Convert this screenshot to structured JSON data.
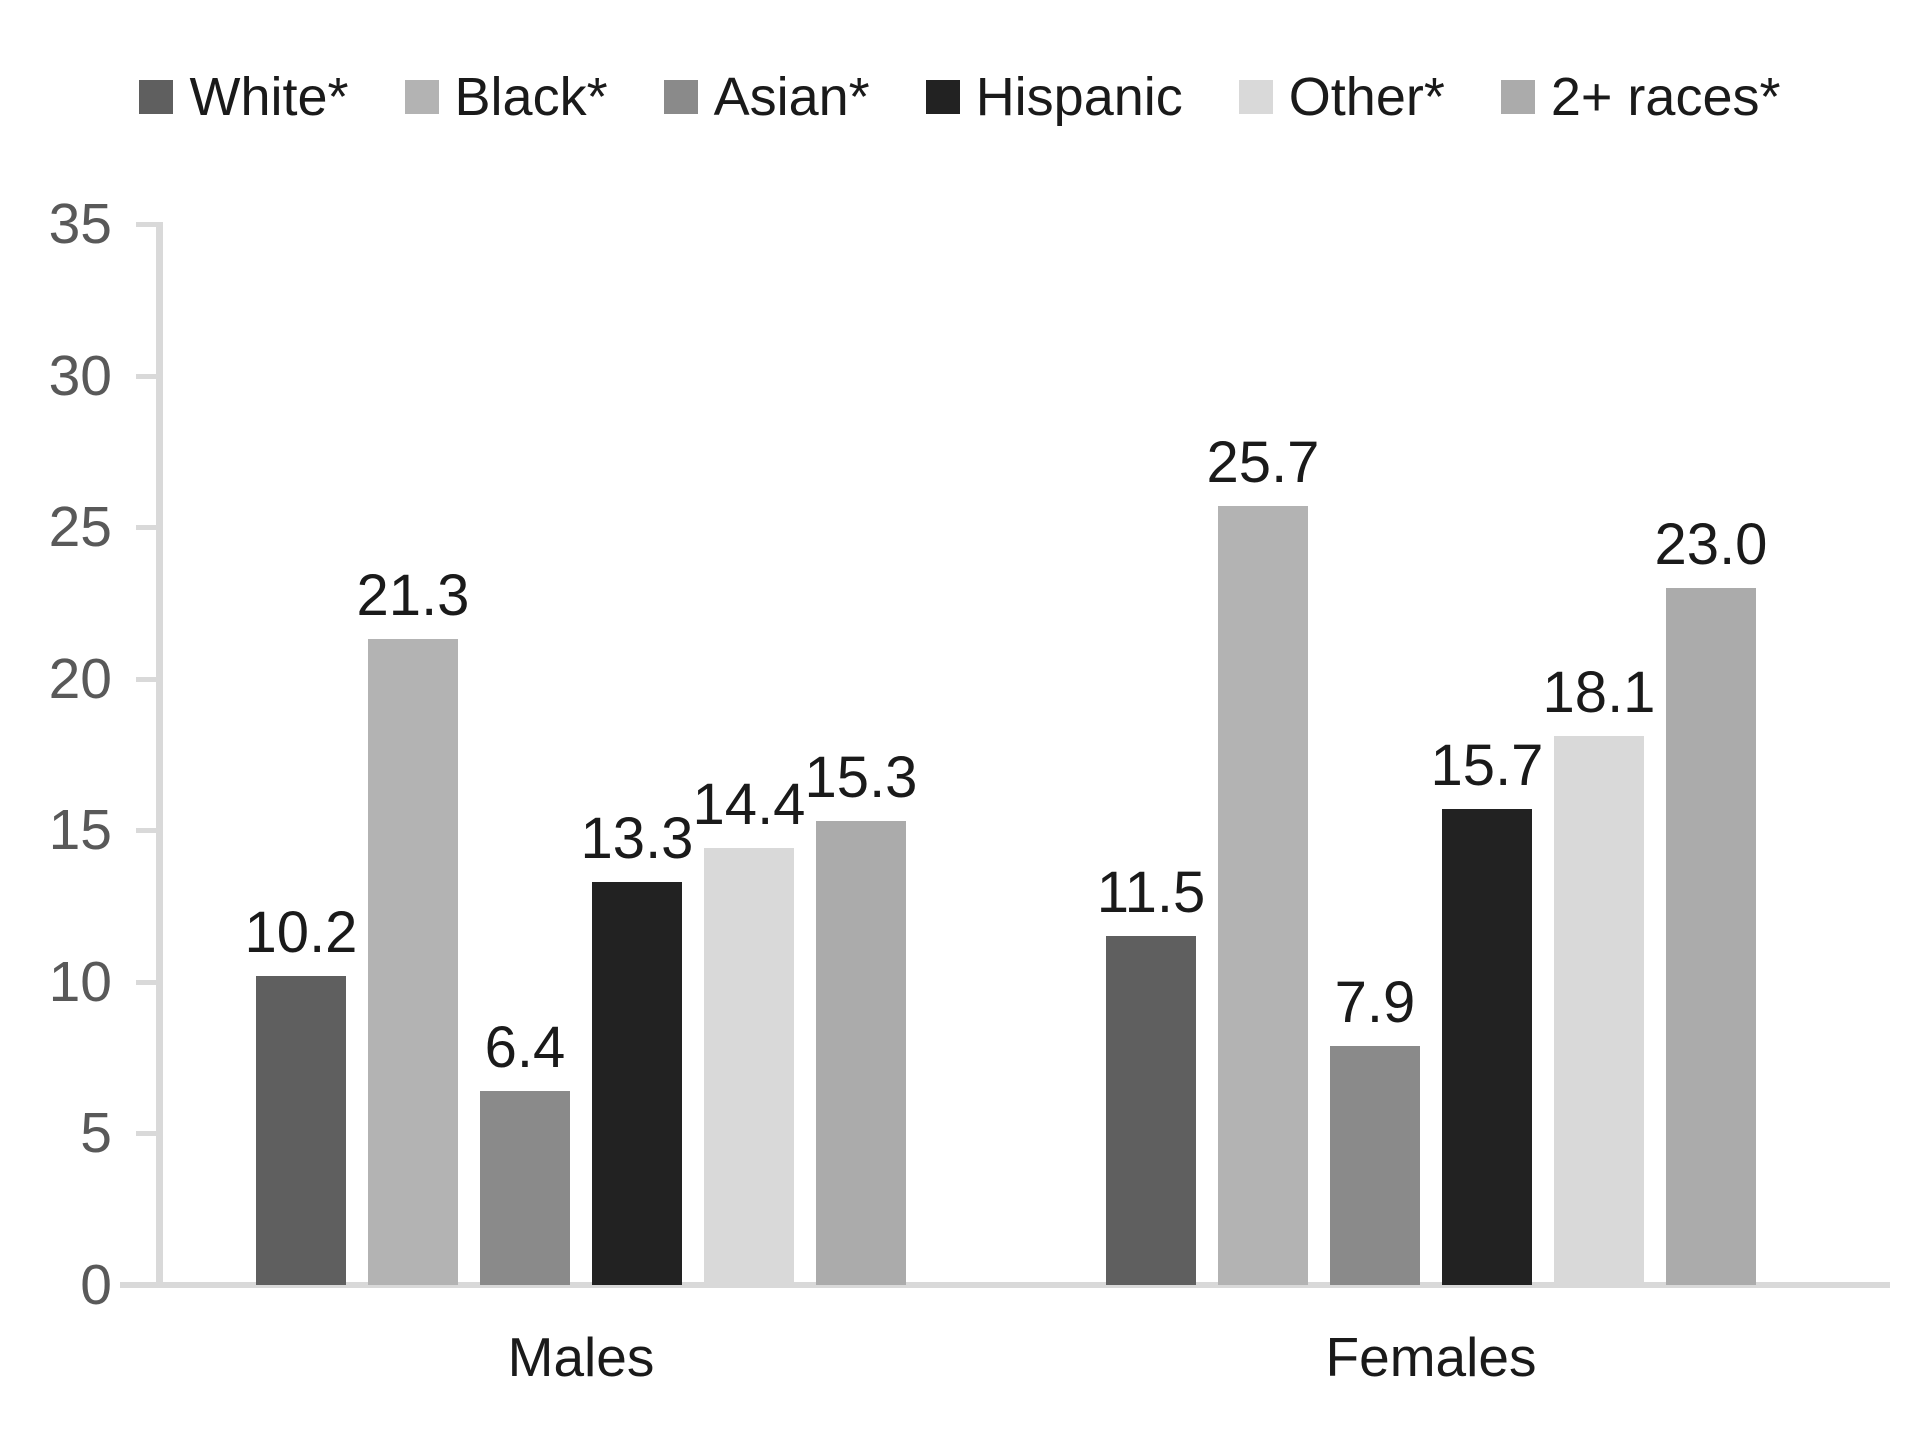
{
  "chart_data": {
    "type": "bar",
    "title": "",
    "xlabel": "",
    "ylabel": "",
    "categories": [
      "Males",
      "Females"
    ],
    "series": [
      {
        "name": "White*",
        "color": "#5f5f5f",
        "values": [
          10.2,
          11.5
        ],
        "labels": [
          "10.2",
          "11.5"
        ]
      },
      {
        "name": "Black*",
        "color": "#b3b3b3",
        "values": [
          21.3,
          25.7
        ],
        "labels": [
          "21.3",
          "25.7"
        ]
      },
      {
        "name": "Asian*",
        "color": "#8a8a8a",
        "values": [
          6.4,
          7.9
        ],
        "labels": [
          "6.4",
          "7.9"
        ]
      },
      {
        "name": "Hispanic",
        "color": "#222222",
        "values": [
          13.3,
          15.7
        ],
        "labels": [
          "13.3",
          "15.7"
        ]
      },
      {
        "name": "Other*",
        "color": "#d9d9d9",
        "values": [
          14.4,
          18.1
        ],
        "labels": [
          "14.4",
          "18.1"
        ]
      },
      {
        "name": "2+ races*",
        "color": "#ababab",
        "values": [
          15.3,
          23.0
        ],
        "labels": [
          "15.3",
          "23.0"
        ]
      }
    ],
    "ylim": [
      0,
      35
    ],
    "yticks": [
      0,
      5,
      10,
      15,
      20,
      25,
      30,
      35
    ],
    "grid": false,
    "legend_position": "top",
    "data_labels_shown": true
  },
  "style": {
    "background": "#ffffff",
    "axis_line_color": "#d9d9d9",
    "tick_label_color": "#595959",
    "data_label_color": "#1a1a1a",
    "category_label_color": "#1a1a1a",
    "legend_text_color": "#1a1a1a"
  }
}
